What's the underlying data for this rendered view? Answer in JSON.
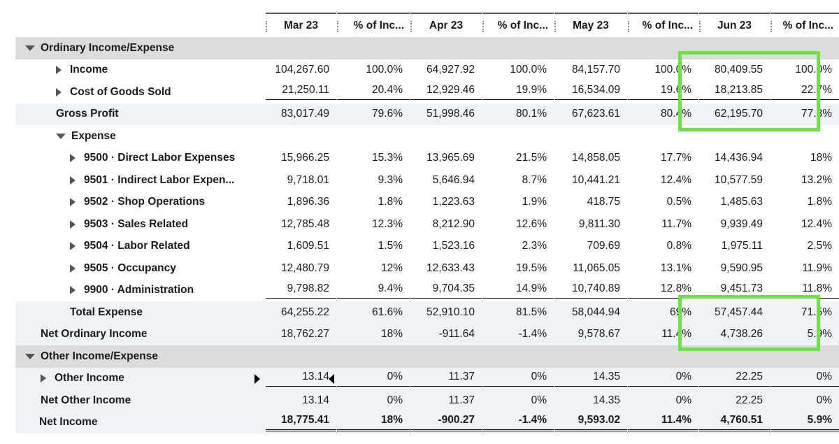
{
  "columns": [
    {
      "month": "Mar 23",
      "pct_label": "% of Inc..."
    },
    {
      "month": "Apr 23",
      "pct_label": "% of Inc..."
    },
    {
      "month": "May 23",
      "pct_label": "% of Inc..."
    },
    {
      "month": "Jun 23",
      "pct_label": "% of Inc..."
    }
  ],
  "rows": [
    {
      "label": "Ordinary Income/Expense",
      "type": "section",
      "icon": "tri-down"
    },
    {
      "label": "Income",
      "type": "item",
      "icon": "tri-right",
      "vals": [
        "104,267.60",
        "100.0%",
        "64,927.92",
        "100.0%",
        "84,157.70",
        "100.0%",
        "80,409.55",
        "100.0%"
      ]
    },
    {
      "label": "Cost of Goods Sold",
      "type": "item",
      "icon": "tri-right",
      "vals": [
        "21,250.11",
        "20.4%",
        "12,929.46",
        "19.9%",
        "16,534.09",
        "19.6%",
        "18,213.85",
        "22.7%"
      ]
    },
    {
      "label": "Gross Profit",
      "type": "total",
      "vals": [
        "83,017.49",
        "79.6%",
        "51,998.46",
        "80.1%",
        "67,623.61",
        "80.4%",
        "62,195.70",
        "77.3%"
      ]
    },
    {
      "label": "Expense",
      "type": "subsection",
      "icon": "tri-down"
    },
    {
      "label": "9500 · Direct Labor Expenses",
      "type": "sub",
      "icon": "tri-right",
      "vals": [
        "15,966.25",
        "15.3%",
        "13,965.69",
        "21.5%",
        "14,858.05",
        "17.7%",
        "14,436.94",
        "18%"
      ]
    },
    {
      "label": "9501 · Indirect Labor Expen...",
      "type": "sub",
      "icon": "tri-right",
      "vals": [
        "9,718.01",
        "9.3%",
        "5,646.94",
        "8.7%",
        "10,441.21",
        "12.4%",
        "10,577.59",
        "13.2%"
      ]
    },
    {
      "label": "9502 · Shop Operations",
      "type": "sub",
      "icon": "tri-right",
      "vals": [
        "1,896.36",
        "1.8%",
        "1,223.63",
        "1.9%",
        "418.75",
        "0.5%",
        "1,485.63",
        "1.8%"
      ]
    },
    {
      "label": "9503 · Sales Related",
      "type": "sub",
      "icon": "tri-right",
      "vals": [
        "12,785.48",
        "12.3%",
        "8,212.90",
        "12.6%",
        "9,811.30",
        "11.7%",
        "9,939.49",
        "12.4%"
      ]
    },
    {
      "label": "9504 · Labor Related",
      "type": "sub",
      "icon": "tri-right",
      "vals": [
        "1,609.51",
        "1.5%",
        "1,523.16",
        "2.3%",
        "709.69",
        "0.8%",
        "1,975.11",
        "2.5%"
      ]
    },
    {
      "label": "9505 · Occupancy",
      "type": "sub",
      "icon": "tri-right",
      "vals": [
        "12,480.79",
        "12%",
        "12,633.43",
        "19.5%",
        "11,065.05",
        "13.1%",
        "9,590.95",
        "11.9%"
      ]
    },
    {
      "label": "9900 · Administration",
      "type": "sub",
      "icon": "tri-right",
      "vals": [
        "9,798.82",
        "9.4%",
        "9,704.35",
        "14.9%",
        "10,740.89",
        "12.8%",
        "9,451.73",
        "11.8%"
      ]
    },
    {
      "label": "Total Expense",
      "type": "subtotal",
      "vals": [
        "64,255.22",
        "61.6%",
        "52,910.10",
        "81.5%",
        "58,044.94",
        "69%",
        "57,457.44",
        "71.5%"
      ]
    },
    {
      "label": "Net Ordinary Income",
      "type": "total0",
      "vals": [
        "18,762.27",
        "18%",
        "-911.64",
        "-1.4%",
        "9,578.67",
        "11.4%",
        "4,738.26",
        "5.9%"
      ]
    },
    {
      "label": "Other Income/Expense",
      "type": "section",
      "icon": "tri-down"
    },
    {
      "label": "Other Income",
      "type": "item2",
      "icon": "tri-right",
      "vals": [
        "13.14",
        "0%",
        "11.37",
        "0%",
        "14.35",
        "0%",
        "22.25",
        "0%"
      ]
    },
    {
      "label": "Net Other Income",
      "type": "total0",
      "vals": [
        "13.14",
        "0%",
        "11.37",
        "0%",
        "14.35",
        "0%",
        "22.25",
        "0%"
      ]
    },
    {
      "label": "Net Income",
      "type": "grand",
      "vals": [
        "18,775.41",
        "18%",
        "-900.27",
        "-1.4%",
        "9,593.02",
        "11.4%",
        "4,760.51",
        "5.9%"
      ]
    }
  ],
  "colors": {
    "highlight": "#6fe04a",
    "section_bg": "#dcdcdc",
    "shade_bg": "#eef3f8"
  }
}
